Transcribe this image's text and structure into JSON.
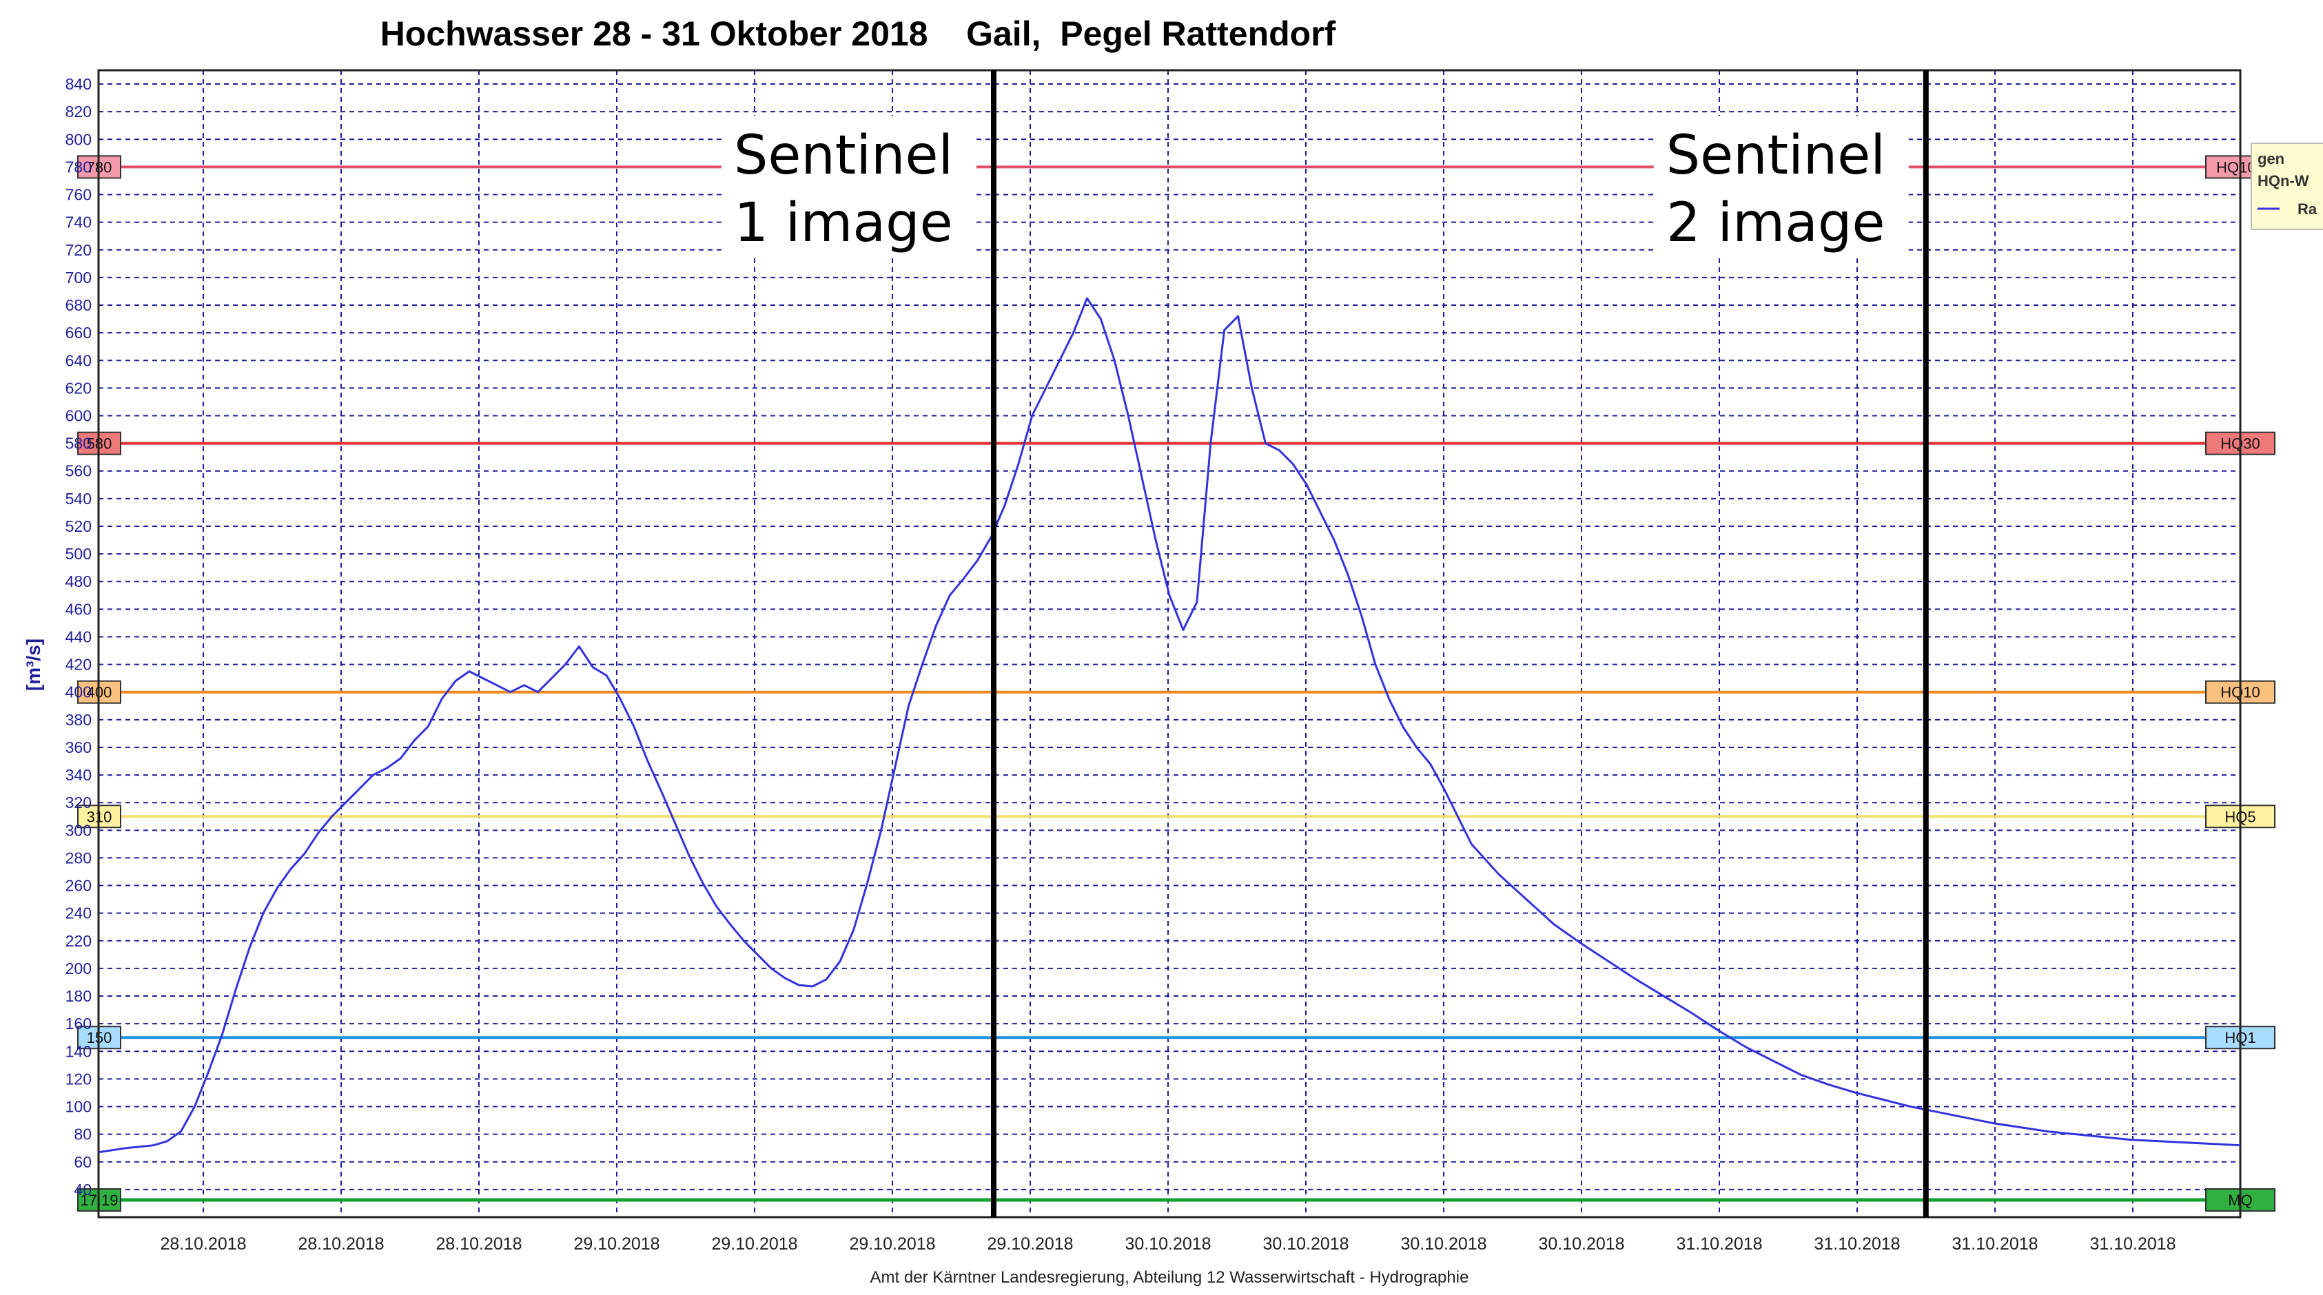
{
  "chart_data": {
    "type": "line",
    "title": "Hochwasser 28 - 31 Oktober 2018    Gail,  Pegel Rattendorf",
    "ylabel": "[m³/s]",
    "footer": "Amt der Kärntner Landesregierung, Abteilung 12 Wasserwirtschaft - Hydrographie",
    "ylim": [
      20,
      850
    ],
    "y_ticks": [
      40,
      60,
      80,
      100,
      120,
      140,
      160,
      180,
      200,
      220,
      240,
      260,
      280,
      300,
      320,
      340,
      360,
      380,
      400,
      420,
      440,
      460,
      480,
      500,
      520,
      540,
      560,
      580,
      600,
      620,
      640,
      660,
      680,
      700,
      720,
      740,
      760,
      780,
      800,
      820,
      840
    ],
    "x_ticks": [
      "28.10.2018",
      "28.10.2018",
      "28.10.2018",
      "29.10.2018",
      "29.10.2018",
      "29.10.2018",
      "29.10.2018",
      "30.10.2018",
      "30.10.2018",
      "30.10.2018",
      "30.10.2018",
      "31.10.2018",
      "31.10.2018",
      "31.10.2018",
      "31.10.2018"
    ],
    "grid": true,
    "reference_lines": [
      {
        "left_label": "780",
        "right_label": "HQ100",
        "value": 780,
        "color": "#e0506a"
      },
      {
        "left_label": "580",
        "right_label": "HQ30",
        "value": 580,
        "color": "#e03030"
      },
      {
        "left_label": "400",
        "right_label": "HQ10",
        "value": 400,
        "color": "#f08a20"
      },
      {
        "left_label": "310",
        "right_label": "HQ5",
        "value": 310,
        "color": "#f2e070"
      },
      {
        "left_label": "150",
        "right_label": "HQ1",
        "value": 150,
        "color": "#1e90e0"
      },
      {
        "left_label": "17.19",
        "right_label": "MQ",
        "value": 17.19,
        "color": "#10a030"
      }
    ],
    "annotations": [
      {
        "line1": "Sentinel",
        "line2": "1 image",
        "x": 65.2
      },
      {
        "line1": "Sentinel",
        "line2": "2 image",
        "x": 133.1
      }
    ],
    "legend": {
      "line1": "gen",
      "line2": "HQn-W",
      "line3": "Ra"
    },
    "series": [
      {
        "color": "#3333dd",
        "x": [
          0,
          2,
          4,
          5,
          6,
          7,
          8,
          9,
          10,
          11,
          12,
          13,
          14,
          15,
          16,
          17,
          18,
          19,
          20,
          21,
          22,
          23,
          24,
          25,
          26,
          27,
          28,
          29,
          30,
          31,
          32,
          33,
          34,
          35,
          36,
          37,
          38,
          39,
          40,
          41,
          42,
          43,
          44,
          45,
          46,
          47,
          48,
          49,
          50,
          51,
          52,
          53,
          54,
          55,
          56,
          57,
          58,
          59,
          60,
          61,
          62,
          63,
          64,
          65,
          66,
          67,
          68,
          69,
          70,
          71,
          72,
          73,
          74,
          75,
          76,
          77,
          78,
          79,
          80,
          81,
          82,
          83,
          84,
          85,
          86,
          87,
          88,
          89,
          90,
          91,
          92,
          93,
          94,
          95,
          96,
          97,
          98,
          99,
          100,
          102,
          104,
          106,
          108,
          110,
          112,
          114,
          116,
          118,
          120,
          122,
          124,
          126,
          128,
          130,
          132,
          134,
          136,
          138,
          140,
          142,
          144,
          146,
          148,
          150,
          152,
          154,
          156
        ],
        "y": [
          67,
          70,
          72,
          75,
          82,
          100,
          125,
          152,
          185,
          215,
          240,
          258,
          272,
          283,
          298,
          310,
          320,
          330,
          340,
          345,
          352,
          365,
          375,
          395,
          408,
          415,
          410,
          405,
          400,
          405,
          400,
          410,
          420,
          433,
          418,
          412,
          395,
          375,
          350,
          328,
          305,
          282,
          262,
          245,
          232,
          220,
          210,
          200,
          193,
          188,
          187,
          192,
          205,
          228,
          262,
          300,
          345,
          390,
          420,
          448,
          470,
          482,
          495,
          512,
          535,
          565,
          600,
          620,
          640,
          660,
          685,
          670,
          640,
          600,
          555,
          510,
          470,
          445,
          465,
          580,
          662,
          672,
          620,
          580,
          575,
          565,
          550,
          530,
          510,
          485,
          455,
          420,
          395,
          375,
          360,
          348,
          330,
          310,
          290,
          268,
          250,
          232,
          218,
          205,
          192,
          180,
          168,
          155,
          143,
          133,
          123,
          116,
          110,
          105,
          100,
          96,
          92,
          88,
          85,
          82,
          80,
          78,
          76,
          75,
          74,
          73,
          72
        ]
      }
    ],
    "x_domain": [
      0,
      156
    ]
  }
}
